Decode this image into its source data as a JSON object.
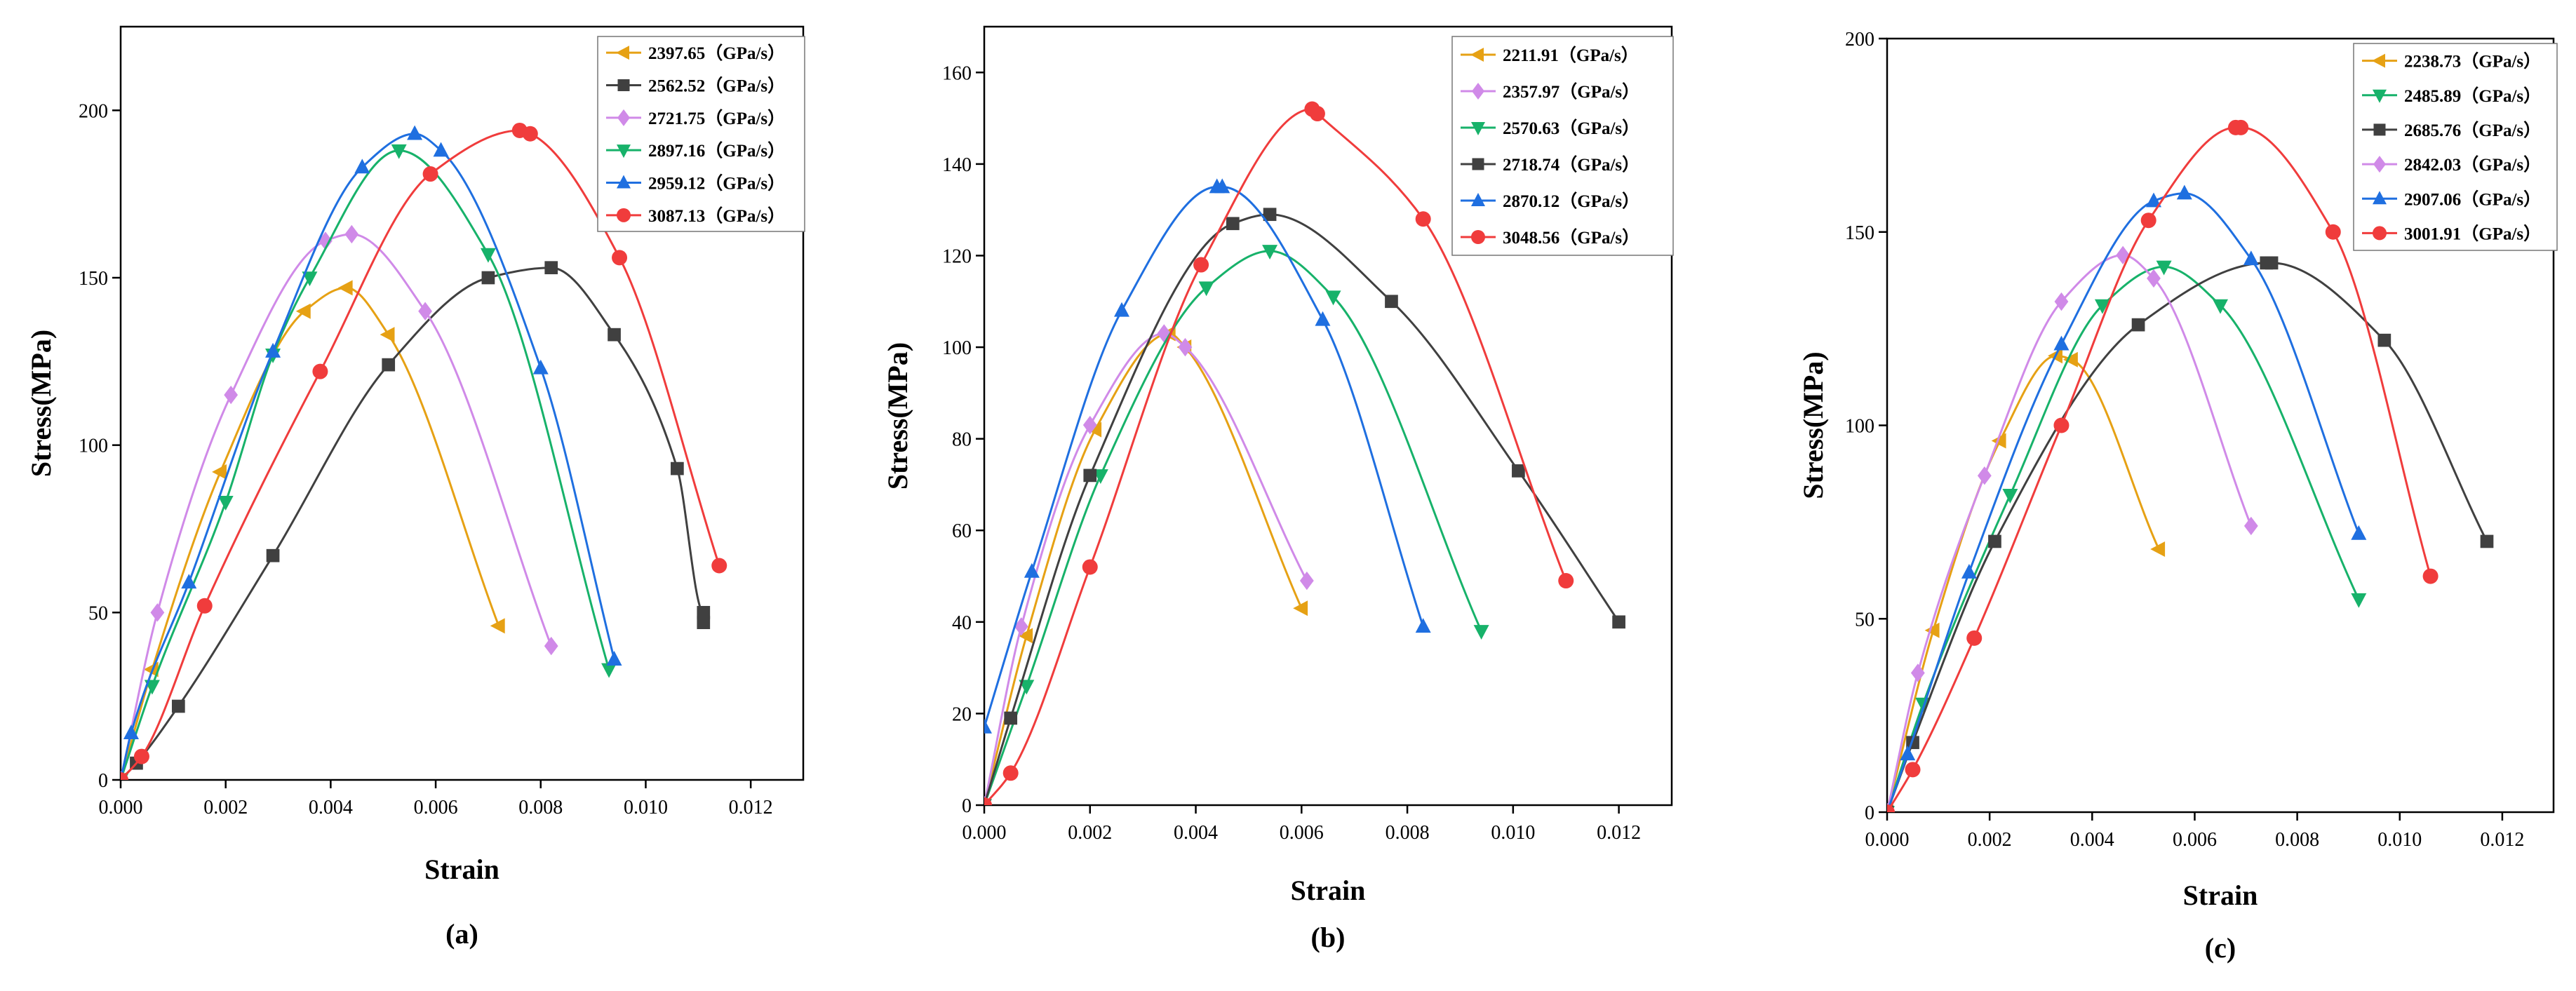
{
  "chart_data": [
    {
      "type": "line",
      "caption": "(a)",
      "xlabel": "Strain",
      "ylabel": "Stress(MPa)",
      "xlim": [
        0,
        0.013
      ],
      "ylim": [
        0,
        225
      ],
      "xticks": [
        0,
        0.002,
        0.004,
        0.006,
        0.008,
        0.01,
        0.012
      ],
      "xtick_labels": [
        "0.000",
        "0.002",
        "0.004",
        "0.006",
        "0.008",
        "0.010",
        "0.012"
      ],
      "yticks": [
        0,
        50,
        100,
        150,
        200
      ],
      "ytick_labels": [
        "0",
        "50",
        "100",
        "150",
        "200"
      ],
      "legend_position": "top-right",
      "series": [
        {
          "name": "2397.65（GPa/s）",
          "color": "#E6A114",
          "marker": "triangle-left",
          "x": [
            0,
            0.0006,
            0.0019,
            0.0035,
            0.0043,
            0.0051,
            0.0072
          ],
          "y": [
            0,
            33,
            92,
            140,
            147,
            133,
            46
          ]
        },
        {
          "name": "2562.52（GPa/s）",
          "color": "#404040",
          "marker": "square",
          "x": [
            0,
            0.0003,
            0.0011,
            0.0029,
            0.0051,
            0.007,
            0.0082,
            0.0094,
            0.0106,
            0.0111,
            0.0111
          ],
          "y": [
            0,
            5,
            22,
            67,
            124,
            150,
            153,
            133,
            93,
            50,
            47
          ]
        },
        {
          "name": "2721.75（GPa/s）",
          "color": "#D08AE8",
          "marker": "diamond",
          "x": [
            0,
            0.0007,
            0.0021,
            0.0039,
            0.0044,
            0.0058,
            0.0082
          ],
          "y": [
            0,
            50,
            115,
            161,
            163,
            140,
            40
          ]
        },
        {
          "name": "2897.16（GPa/s）",
          "color": "#17B26A",
          "marker": "triangle-down",
          "x": [
            0,
            0.0006,
            0.002,
            0.0029,
            0.0036,
            0.0053,
            0.007,
            0.0093
          ],
          "y": [
            0,
            28,
            83,
            127,
            150,
            188,
            157,
            33
          ]
        },
        {
          "name": "2959.12（GPa/s）",
          "color": "#1F6FE0",
          "marker": "triangle-up",
          "x": [
            0,
            0.0002,
            0.0013,
            0.0029,
            0.0046,
            0.0056,
            0.0061,
            0.008,
            0.0094
          ],
          "y": [
            0,
            14,
            59,
            128,
            183,
            193,
            188,
            123,
            36
          ]
        },
        {
          "name": "3087.13（GPa/s）",
          "color": "#F03C3C",
          "marker": "circle",
          "x": [
            0,
            0.0004,
            0.0016,
            0.0038,
            0.0059,
            0.0076,
            0.0078,
            0.0095,
            0.0114
          ],
          "y": [
            0,
            7,
            52,
            122,
            181,
            194,
            193,
            156,
            64
          ]
        }
      ]
    },
    {
      "type": "line",
      "caption": "(b)",
      "xlabel": "Strain",
      "ylabel": "Stress(MPa)",
      "xlim": [
        0,
        0.013
      ],
      "ylim": [
        0,
        170
      ],
      "xticks": [
        0,
        0.002,
        0.004,
        0.006,
        0.008,
        0.01,
        0.012
      ],
      "xtick_labels": [
        "0.000",
        "0.002",
        "0.004",
        "0.006",
        "0.008",
        "0.010",
        "0.012"
      ],
      "yticks": [
        0,
        20,
        40,
        60,
        80,
        100,
        120,
        140,
        160
      ],
      "ytick_labels": [
        "0",
        "20",
        "40",
        "60",
        "80",
        "100",
        "120",
        "140",
        "160"
      ],
      "legend_position": "top-right",
      "series": [
        {
          "name": "2211.91（GPa/s）",
          "color": "#E6A114",
          "marker": "triangle-left",
          "x": [
            0,
            0.0008,
            0.0021,
            0.0035,
            0.0038,
            0.006
          ],
          "y": [
            0,
            37,
            82,
            103,
            100,
            43
          ]
        },
        {
          "name": "2357.97（GPa/s）",
          "color": "#D08AE8",
          "marker": "diamond",
          "x": [
            0,
            0.0007,
            0.002,
            0.0034,
            0.0038,
            0.0061
          ],
          "y": [
            0,
            39,
            83,
            103,
            100,
            49
          ]
        },
        {
          "name": "2570.63（GPa/s）",
          "color": "#17B26A",
          "marker": "triangle-down",
          "x": [
            0,
            0.0008,
            0.0022,
            0.0042,
            0.0054,
            0.0066,
            0.0094
          ],
          "y": [
            0,
            26,
            72,
            113,
            121,
            111,
            38
          ]
        },
        {
          "name": "2718.74（GPa/s）",
          "color": "#404040",
          "marker": "square",
          "x": [
            0,
            0.0005,
            0.002,
            0.0047,
            0.0054,
            0.0077,
            0.0101,
            0.012
          ],
          "y": [
            0,
            19,
            72,
            127,
            129,
            110,
            73,
            40
          ]
        },
        {
          "name": "2870.12（GPa/s）",
          "color": "#1F6FE0",
          "marker": "triangle-up",
          "x": [
            0,
            0.0009,
            0.0026,
            0.0044,
            0.0045,
            0.0064,
            0.0083
          ],
          "y": [
            17,
            51,
            108,
            135,
            135,
            106,
            39
          ]
        },
        {
          "name": "3048.56（GPa/s）",
          "color": "#F03C3C",
          "marker": "circle",
          "x": [
            0,
            0.0005,
            0.002,
            0.0041,
            0.0062,
            0.0063,
            0.0083,
            0.011
          ],
          "y": [
            0,
            7,
            52,
            118,
            152,
            151,
            128,
            49
          ]
        }
      ]
    },
    {
      "type": "line",
      "caption": "(c)",
      "xlabel": "Strain",
      "ylabel": "Stress(MPa)",
      "xlim": [
        0,
        0.013
      ],
      "ylim": [
        0,
        200
      ],
      "xticks": [
        0,
        0.002,
        0.004,
        0.006,
        0.008,
        0.01,
        0.012
      ],
      "xtick_labels": [
        "0.000",
        "0.002",
        "0.004",
        "0.006",
        "0.008",
        "0.010",
        "0.012"
      ],
      "yticks": [
        0,
        50,
        100,
        150,
        200
      ],
      "ytick_labels": [
        "0",
        "50",
        "100",
        "150",
        "200"
      ],
      "legend_position": "top-right",
      "series": [
        {
          "name": "2238.73（GPa/s）",
          "color": "#E6A114",
          "marker": "triangle-left",
          "x": [
            0,
            0.0009,
            0.0022,
            0.0033,
            0.0036,
            0.0053
          ],
          "y": [
            0,
            47,
            96,
            118,
            117,
            68
          ]
        },
        {
          "name": "2485.89（GPa/s）",
          "color": "#17B26A",
          "marker": "triangle-down",
          "x": [
            0,
            0.0007,
            0.0024,
            0.0042,
            0.0054,
            0.0065,
            0.0092
          ],
          "y": [
            0,
            28,
            82,
            131,
            141,
            131,
            55
          ]
        },
        {
          "name": "2685.76（GPa/s）",
          "color": "#404040",
          "marker": "square",
          "x": [
            0,
            0.0005,
            0.0021,
            0.0049,
            0.0074,
            0.0075,
            0.0097,
            0.0117
          ],
          "y": [
            0,
            18,
            70,
            126,
            142,
            142,
            122,
            70
          ]
        },
        {
          "name": "2842.03（GPa/s）",
          "color": "#D08AE8",
          "marker": "diamond",
          "x": [
            0,
            0.0006,
            0.0019,
            0.0034,
            0.0046,
            0.0052,
            0.0071
          ],
          "y": [
            0,
            36,
            87,
            132,
            144,
            138,
            74
          ]
        },
        {
          "name": "2907.06（GPa/s）",
          "color": "#1F6FE0",
          "marker": "triangle-up",
          "x": [
            0,
            0.0004,
            0.0016,
            0.0034,
            0.0052,
            0.0058,
            0.0071,
            0.0092
          ],
          "y": [
            0,
            15,
            62,
            121,
            158,
            160,
            143,
            72
          ]
        },
        {
          "name": "3001.91（GPa/s）",
          "color": "#F03C3C",
          "marker": "circle",
          "x": [
            0,
            0.0005,
            0.0017,
            0.0034,
            0.0051,
            0.0068,
            0.0069,
            0.0087,
            0.0106
          ],
          "y": [
            0,
            11,
            45,
            100,
            153,
            177,
            177,
            150,
            61
          ]
        }
      ]
    }
  ]
}
